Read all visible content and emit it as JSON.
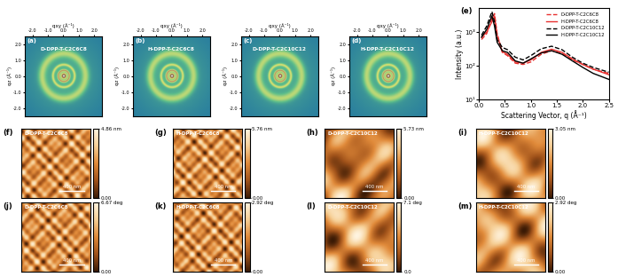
{
  "chart_data": [
    {
      "type": "image",
      "panel": "(a)",
      "title": "D-DPP-T-C2C6C8",
      "xlabel": "qxy (Å⁻¹)",
      "ylabel": "qz (Å⁻¹)",
      "xlim": [
        -2.5,
        2.5
      ],
      "ylim": [
        -2.5,
        2.5
      ],
      "xticks": [
        {
          "value": -2,
          "label": "-2.0"
        },
        {
          "value": -1,
          "label": "-1.0"
        },
        {
          "value": 0,
          "label": "0.0"
        },
        {
          "value": 1,
          "label": "1.0"
        },
        {
          "value": 2,
          "label": "2.0"
        }
      ],
      "yticks": [
        {
          "value": -2,
          "label": "-2.0"
        },
        {
          "value": -1,
          "label": "-1.0"
        },
        {
          "value": 0,
          "label": "0.0"
        },
        {
          "value": 1,
          "label": "1.0"
        },
        {
          "value": 2,
          "label": "2.0"
        }
      ]
    },
    {
      "type": "image",
      "panel": "(b)",
      "title": "H-DPP-T-C2C6C8",
      "xlabel": "qxy (Å⁻¹)",
      "ylabel": "qz (Å⁻¹)",
      "xlim": [
        -2.5,
        2.5
      ],
      "ylim": [
        -2.5,
        2.5
      ],
      "xticks": [
        {
          "value": -2,
          "label": "-2.0"
        },
        {
          "value": -1,
          "label": "-1.0"
        },
        {
          "value": 0,
          "label": "0.0"
        },
        {
          "value": 1,
          "label": "1.0"
        },
        {
          "value": 2,
          "label": "2.0"
        }
      ],
      "yticks": [
        {
          "value": -2,
          "label": "-2.0"
        },
        {
          "value": -1,
          "label": "-1.0"
        },
        {
          "value": 0,
          "label": "0.0"
        },
        {
          "value": 1,
          "label": "1.0"
        },
        {
          "value": 2,
          "label": "2.0"
        }
      ]
    },
    {
      "type": "image",
      "panel": "(c)",
      "title": "D-DPP-T-C2C10C12",
      "xlabel": "qxy (Å⁻¹)",
      "ylabel": "qz (Å⁻¹)",
      "xlim": [
        -2.5,
        2.5
      ],
      "ylim": [
        -2.5,
        2.5
      ],
      "xticks": [
        {
          "value": -2,
          "label": "-2.0"
        },
        {
          "value": -1,
          "label": "-1.0"
        },
        {
          "value": 0,
          "label": "0.0"
        },
        {
          "value": 1,
          "label": "1.0"
        },
        {
          "value": 2,
          "label": "2.0"
        }
      ],
      "yticks": [
        {
          "value": -2,
          "label": "-2.0"
        },
        {
          "value": -1,
          "label": "-1.0"
        },
        {
          "value": 0,
          "label": "0.0"
        },
        {
          "value": 1,
          "label": "1.0"
        },
        {
          "value": 2,
          "label": "2.0"
        }
      ]
    },
    {
      "type": "image",
      "panel": "(d)",
      "title": "H-DPP-T-C2C10C12",
      "xlabel": "qxy (Å⁻¹)",
      "ylabel": "qz (Å⁻¹)",
      "xlim": [
        -2.5,
        2.5
      ],
      "ylim": [
        -2.5,
        2.5
      ],
      "xticks": [
        {
          "value": -2,
          "label": "-2.0"
        },
        {
          "value": -1,
          "label": "-1.0"
        },
        {
          "value": 0,
          "label": "0.0"
        },
        {
          "value": 1,
          "label": "1.0"
        },
        {
          "value": 2,
          "label": "2.0"
        }
      ],
      "yticks": [
        {
          "value": -2,
          "label": "-2.0"
        },
        {
          "value": -1,
          "label": "-1.0"
        },
        {
          "value": 0,
          "label": "0.0"
        },
        {
          "value": 1,
          "label": "1.0"
        },
        {
          "value": 2,
          "label": "2.0"
        }
      ]
    },
    {
      "type": "line",
      "panel": "(e)",
      "xlabel": "Scattering Vector, q (Å⁻¹)",
      "ylabel": "Intensity (a.u.)",
      "log": "y",
      "legend": "upper right",
      "xlim": [
        0,
        2.5
      ],
      "ylim": [
        10,
        5000
      ],
      "xticks": [
        {
          "value": 0.0,
          "label": "0.0"
        },
        0.5,
        1.0,
        1.5,
        2.0,
        2.5
      ],
      "yticks": [
        {
          "value": 10,
          "label": "10¹"
        },
        {
          "value": 100,
          "label": "10²"
        },
        {
          "value": 1000,
          "label": "10³"
        }
      ],
      "x": [
        0.05,
        0.15,
        0.25,
        0.3,
        0.35,
        0.45,
        0.55,
        0.7,
        0.85,
        1.0,
        1.2,
        1.4,
        1.6,
        1.8,
        2.0,
        2.2,
        2.5
      ],
      "series": [
        {
          "name": "D-DPP-T-C2C6C8",
          "color": "#e8312f",
          "line_style": "dashed",
          "values": [
            600,
            900,
            2500,
            3500,
            900,
            250,
            200,
            120,
            110,
            130,
            220,
            280,
            230,
            150,
            110,
            80,
            60
          ]
        },
        {
          "name": "H-DPP-T-C2C6C8",
          "color": "#e8312f",
          "line_style": "solid",
          "values": [
            700,
            1000,
            2000,
            3000,
            800,
            260,
            220,
            130,
            120,
            150,
            250,
            310,
            250,
            160,
            110,
            80,
            55
          ]
        },
        {
          "name": "D-DPP-T-C2C10C12",
          "color": "#000000",
          "line_style": "dashed",
          "values": [
            800,
            1500,
            4000,
            2000,
            600,
            350,
            300,
            180,
            150,
            200,
            320,
            380,
            300,
            180,
            120,
            90,
            65
          ]
        },
        {
          "name": "H-DPP-T-C2C10C12",
          "color": "#000000",
          "line_style": "solid",
          "values": [
            700,
            1200,
            3000,
            1500,
            500,
            280,
            250,
            140,
            120,
            160,
            240,
            280,
            220,
            140,
            90,
            60,
            40
          ]
        }
      ]
    },
    {
      "type": "heatmap",
      "panel": "(f)",
      "title": "D-DPP-T-C2C6C8",
      "scale_bar": "400 nm",
      "color_range": [
        0,
        4.86
      ],
      "color_ticks": [
        {
          "value": 0,
          "label": "0.00"
        },
        {
          "value": 4.86,
          "label": "4.86 nm"
        }
      ]
    },
    {
      "type": "heatmap",
      "panel": "(g)",
      "title": "H-DPP-T-C2C6C8",
      "scale_bar": "400 nm",
      "color_range": [
        0,
        5.76
      ],
      "color_ticks": [
        {
          "value": 0,
          "label": "0.00"
        },
        {
          "value": 5.76,
          "label": "5.76 nm"
        }
      ]
    },
    {
      "type": "heatmap",
      "panel": "(h)",
      "title": "D-DPP-T-C2C10C12",
      "scale_bar": "400 nm",
      "color_range": [
        0,
        5.73
      ],
      "color_ticks": [
        {
          "value": 0,
          "label": "0.00"
        },
        {
          "value": 5.73,
          "label": "5.73 nm"
        }
      ]
    },
    {
      "type": "heatmap",
      "panel": "(i)",
      "title": "H-DPP-T-C2C10C12",
      "scale_bar": "400 nm",
      "color_range": [
        0,
        3.05
      ],
      "color_ticks": [
        {
          "value": 0,
          "label": "0.00"
        },
        {
          "value": 3.05,
          "label": "3.05 nm"
        }
      ]
    },
    {
      "type": "heatmap",
      "panel": "(j)",
      "title": "D-DPP-T-C2C6C8",
      "scale_bar": "400 nm",
      "color_range": [
        0,
        6.67
      ],
      "color_ticks": [
        {
          "value": 0,
          "label": "0.00"
        },
        {
          "value": 6.67,
          "label": "6.67 deg"
        }
      ]
    },
    {
      "type": "heatmap",
      "panel": "(k)",
      "title": "H-DPP-T-C2C6C8",
      "scale_bar": "400 nm",
      "color_range": [
        0,
        2.92
      ],
      "color_ticks": [
        {
          "value": 0,
          "label": "0.00"
        },
        {
          "value": 2.92,
          "label": "2.92 deg"
        }
      ]
    },
    {
      "type": "heatmap",
      "panel": "(l)",
      "title": "D-DPP-T-C2C10C12",
      "scale_bar": "400 nm",
      "color_range": [
        0,
        7.1
      ],
      "color_ticks": [
        {
          "value": 0,
          "label": "0.0"
        },
        {
          "value": 7.1,
          "label": "7.1 deg"
        }
      ]
    },
    {
      "type": "heatmap",
      "panel": "(m)",
      "title": "H-DPP-T-C2C10C12",
      "scale_bar": "400 nm",
      "color_range": [
        0,
        2.92
      ],
      "color_ticks": [
        {
          "value": 0,
          "label": "0.00"
        },
        {
          "value": 2.92,
          "label": "2.92 deg"
        }
      ]
    }
  ]
}
